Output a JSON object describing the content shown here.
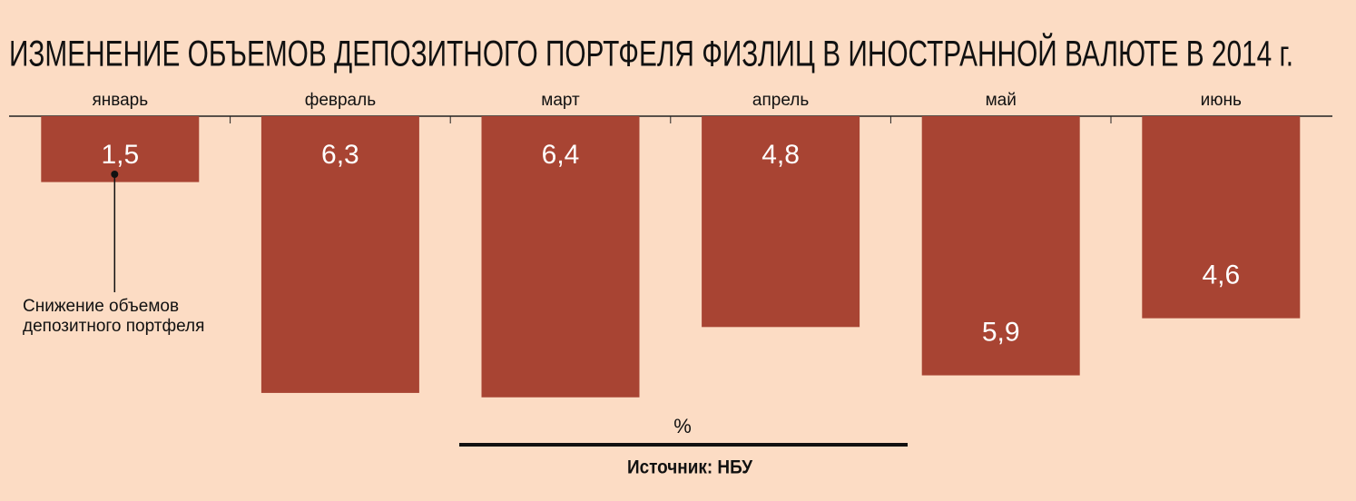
{
  "chart_data": {
    "type": "bar",
    "title": "ИЗМЕНЕНИЕ ОБЪЕМОВ ДЕПОЗИТНОГО ПОРТФЕЛЯ ФИЗЛИЦ В ИНОСТРАННОЙ ВАЛЮТЕ В 2014 г.",
    "categories": [
      "январь",
      "февраль",
      "март",
      "апрель",
      "май",
      "июнь"
    ],
    "values": [
      1.5,
      6.3,
      6.4,
      4.8,
      5.9,
      4.6
    ],
    "value_labels": [
      "1,5",
      "6,3",
      "6,4",
      "4,8",
      "5,9",
      "4,6"
    ],
    "color": "#a84433",
    "annotation": [
      "Снижение объемов",
      "депозитного портфеля"
    ],
    "y_label": "%",
    "source": "Источник: НБУ"
  }
}
